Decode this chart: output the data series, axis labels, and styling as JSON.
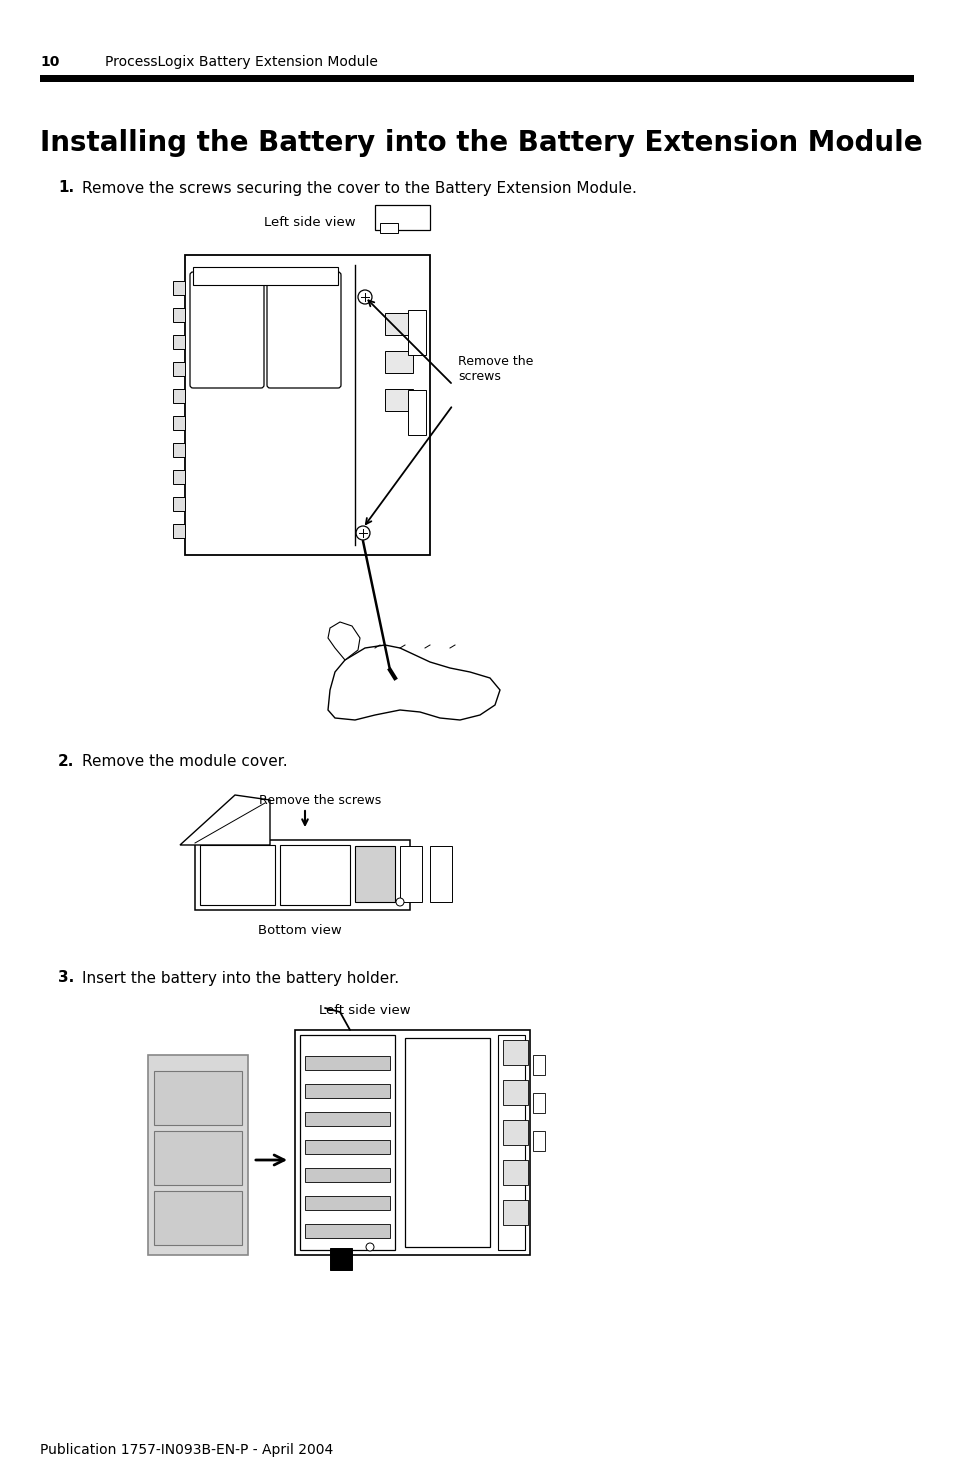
{
  "page_number": "10",
  "header_text": "ProcessLogix Battery Extension Module",
  "section_title": "Installing the Battery into the Battery Extension Module",
  "step1_label": "1.",
  "step1_text": "Remove the screws securing the cover to the Battery Extension Module.",
  "step1_caption": "Left side view",
  "step1_annotation": "Remove the\nscrews",
  "step2_label": "2.",
  "step2_text": "Remove the module cover.",
  "step2_caption": "Bottom view",
  "step2_annotation": "Remove the screws",
  "step3_label": "3.",
  "step3_text": "Insert the battery into the battery holder.",
  "step3_caption": "Left side view",
  "footer_text": "Publication 1757-IN093B-EN-P - April 2004",
  "bg_color": "#ffffff",
  "text_color": "#000000"
}
